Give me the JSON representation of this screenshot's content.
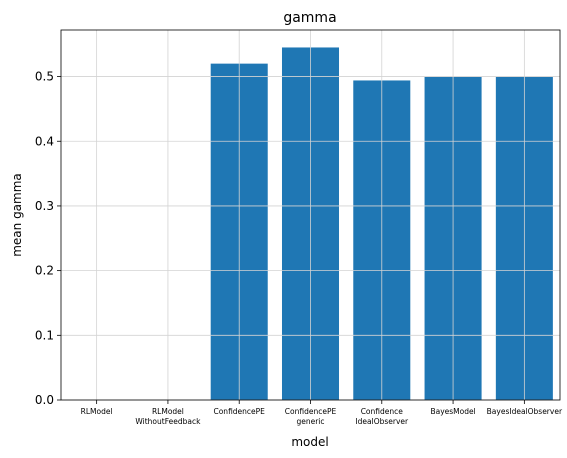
{
  "chart_data": {
    "type": "bar",
    "title": "gamma",
    "xlabel": "model",
    "ylabel": "mean gamma",
    "categories": [
      [
        "RLModel"
      ],
      [
        "RLModel",
        "WithoutFeedback"
      ],
      [
        "ConfidencePE"
      ],
      [
        "ConfidencePE",
        "generic"
      ],
      [
        "Confidence",
        "IdealObserver"
      ],
      [
        "BayesModel"
      ],
      [
        "BayesIdealObserver"
      ]
    ],
    "values": [
      0,
      0,
      0.52,
      0.545,
      0.494,
      0.5,
      0.5
    ],
    "ylim": [
      0,
      0.572
    ],
    "yticks": [
      0.0,
      0.1,
      0.2,
      0.3,
      0.4,
      0.5
    ],
    "grid": true,
    "bar_color": "#1f77b4",
    "grid_color": "#d3d3d3"
  }
}
